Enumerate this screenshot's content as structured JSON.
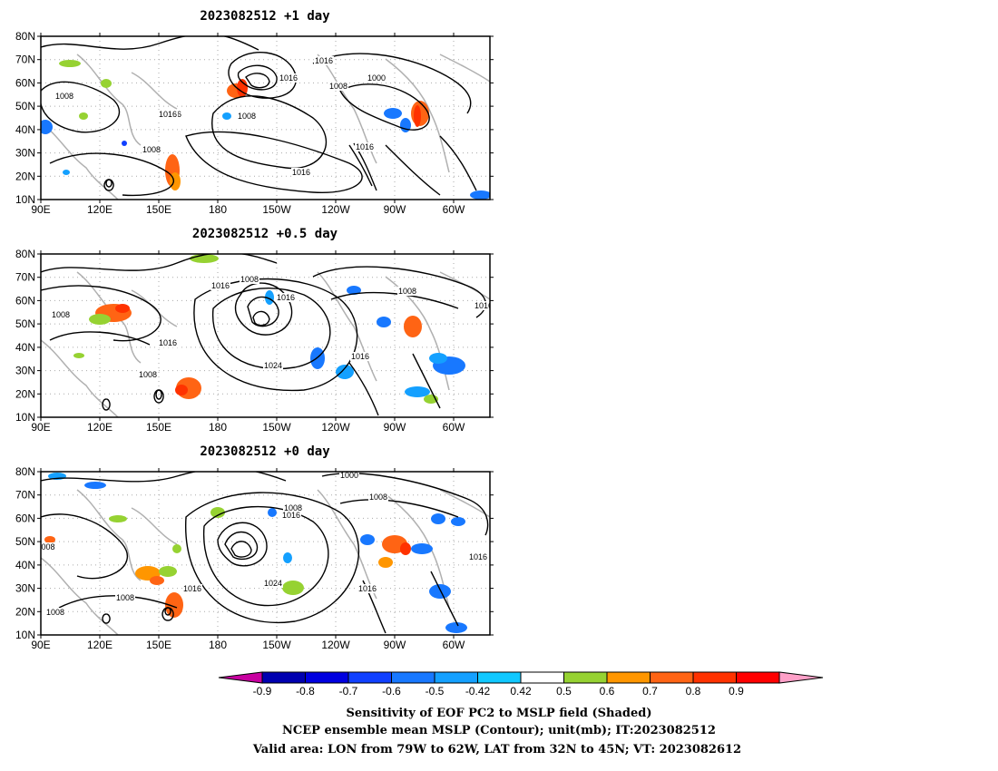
{
  "panels": [
    {
      "title": "2023082512  +1 day",
      "contour_labels": [
        "1016",
        "1008",
        "1016",
        "1016",
        "1008",
        "1000",
        "1008",
        "1016",
        "1016",
        "1008",
        "1016"
      ]
    },
    {
      "title": "2023082512  +0.5 day",
      "contour_labels": [
        "1008",
        "1016",
        "1016",
        "1008",
        "1008",
        "1016",
        "1024",
        "1016",
        "1008",
        "1016",
        "1008"
      ]
    },
    {
      "title": "2023082512  +0 day",
      "contour_labels": [
        "1000",
        "1008",
        "1008",
        "1016",
        "008",
        "1024",
        "1016",
        "1008",
        "1016",
        "1008",
        "1016"
      ]
    }
  ],
  "axes": {
    "x_ticks": [
      "90E",
      "120E",
      "150E",
      "180",
      "150W",
      "120W",
      "90W",
      "60W"
    ],
    "y_ticks": [
      "80N",
      "70N",
      "60N",
      "50N",
      "40N",
      "30N",
      "20N",
      "10N"
    ]
  },
  "colorbar": {
    "labels": [
      "-0.9",
      "-0.8",
      "-0.7",
      "-0.6",
      "-0.5",
      "-0.42",
      "0.42",
      "0.5",
      "0.6",
      "0.7",
      "0.8",
      "0.9"
    ],
    "colors": [
      "#0000b0",
      "#0000e0",
      "#1040ff",
      "#1878ff",
      "#14a0ff",
      "#10c8ff",
      "#ffffff",
      "#96d232",
      "#ff9600",
      "#ff6414",
      "#ff3200",
      "#ff0000"
    ],
    "low_end_color": "#c800a0",
    "high_end_color": "#ffa0c8"
  },
  "caption": {
    "line1": "Sensitivity of EOF PC2 to MSLP field (Shaded)",
    "line2": "NCEP ensemble mean MSLP (Contour); unit(mb); IT:2023082512",
    "line3": "Valid area: LON from 79W to 62W, LAT from 32N to 45N; VT: 2023082612"
  }
}
